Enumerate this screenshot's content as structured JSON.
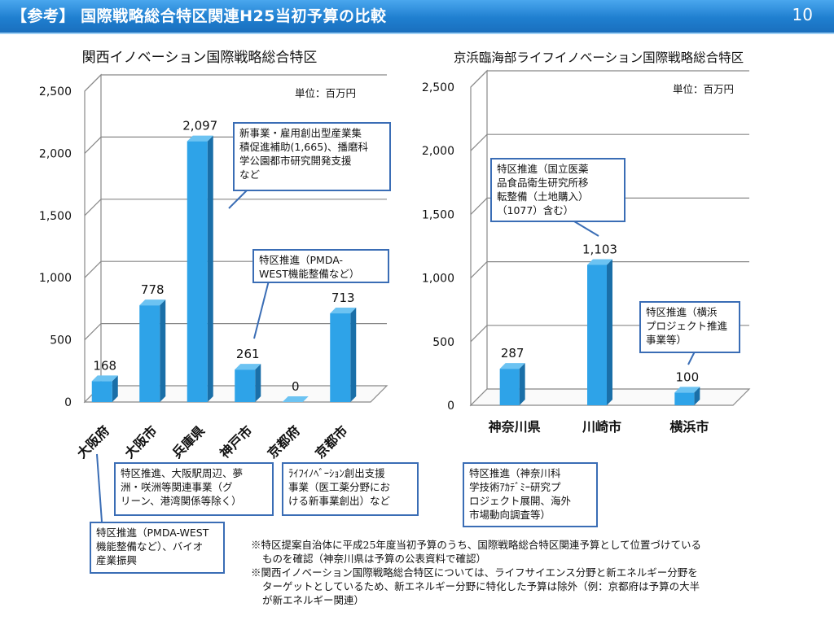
{
  "header": {
    "title": "【参考】 国際戦略総合特区関連H25当初予算の比較",
    "page_number": "10"
  },
  "charts": {
    "left_title": "関西イノベーション国際戦略総合特区",
    "right_title": "京浜臨海部ライフイノベーション国際戦略総合特区",
    "unit_label": "単位：百万円"
  },
  "callouts": {
    "hyogo": "新事業・雇用創出型産業集\n積促進補助(1,665)、播磨科\n学公園都市研究開発支援\nなど",
    "kobe": "特区推進（PMDA-\nWEST機能整備など）",
    "osaka_city": "特区推進、大阪駅周辺、夢\n洲・咲洲等関連事業（グ\nリーン、港湾関係等除く）",
    "kyoto_city": "ﾗｲﾌｲﾉﾍﾞｰｼｮﾝ創出支援\n事業（医工薬分野にお\nける新事業創出）など",
    "osaka_pref": "特区推進（PMDA-WEST\n機能整備など）、バイオ\n産業振興",
    "kawasaki": "特区推進（国立医薬\n品食品衛生研究所移\n転整備（土地購入）\n（1077）含む）",
    "yokohama": "特区推進（横浜\nプロジェクト推進\n事業等）",
    "kanagawa": "特区推進（神奈川科\n学技術ｱｶﾃﾞﾐｰ研究プ\nロジェクト展開、海外\n市場動向調査等）"
  },
  "notes": [
    "※特区提案自治体に平成25年度当初予算のうち、国際戦略総合特区関連予算として位置づけている\nものを確認（神奈川県は予算の公表資料で確認）",
    "※関西イノベーション国際戦略総合特区については、ライフサイエンス分野と新エネルギー分野を\nターゲットとしているため、新エネルギー分野に特化した予算は除外（例：京都府は予算の大半\nが新エネルギー関連）"
  ],
  "colors": {
    "bar": "#2ea3e8",
    "bar_side": "#1a6fa8",
    "bar_top": "#6cc3f2",
    "callout_border": "#3a6db5",
    "header": "#1f7fd0"
  },
  "chart_data": [
    {
      "type": "bar",
      "title": "関西イノベーション国際戦略総合特区",
      "categories": [
        "大阪府",
        "大阪市",
        "兵庫県",
        "神戸市",
        "京都府",
        "京都市"
      ],
      "values": [
        168,
        778,
        2097,
        261,
        0,
        713
      ],
      "value_labels": [
        "168",
        "778",
        "2,097",
        "261",
        "0",
        "713"
      ],
      "ylim": [
        0,
        2500
      ],
      "yticks": [
        "0",
        "500",
        "1,000",
        "1,500",
        "2,000",
        "2,500"
      ],
      "unit": "単位：百万円",
      "grid": true
    },
    {
      "type": "bar",
      "title": "京浜臨海部ライフイノベーション国際戦略総合特区",
      "categories": [
        "神奈川県",
        "川崎市",
        "横浜市"
      ],
      "values": [
        287,
        1103,
        100
      ],
      "value_labels": [
        "287",
        "1,103",
        "100"
      ],
      "ylim": [
        0,
        2500
      ],
      "yticks": [
        "0",
        "500",
        "1,000",
        "1,500",
        "2,000",
        "2,500"
      ],
      "unit": "単位：百万円",
      "grid": true
    }
  ]
}
